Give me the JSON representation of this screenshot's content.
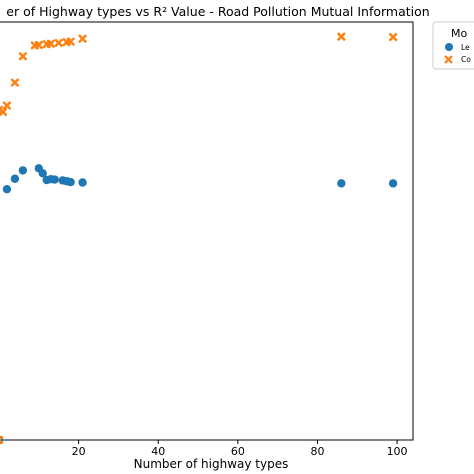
{
  "chart_data": {
    "type": "scatter",
    "title": "er of Highway types vs R² Value - Road Pollution Mutual Information",
    "xlabel": "Number of highway types",
    "ylabel": "",
    "xlim": [
      -1,
      104
    ],
    "ylim": [
      0,
      1
    ],
    "x_ticks": [
      20,
      40,
      60,
      80,
      100
    ],
    "x_tick_labels": [
      "20",
      "40",
      "60",
      "80",
      "100"
    ],
    "grid": false,
    "legend": {
      "title": "Mo",
      "placement": "top-right",
      "entries": [
        "Le",
        "Co"
      ]
    },
    "series": [
      {
        "name": "Le",
        "marker": "circle",
        "color": "#1f77b4",
        "points": [
          {
            "x": 0,
            "y": 0
          },
          {
            "x": 2,
            "y": 0.6
          },
          {
            "x": 4,
            "y": 0.625
          },
          {
            "x": 6,
            "y": 0.645
          },
          {
            "x": 10,
            "y": 0.65
          },
          {
            "x": 11,
            "y": 0.638
          },
          {
            "x": 12,
            "y": 0.622
          },
          {
            "x": 13,
            "y": 0.624
          },
          {
            "x": 14,
            "y": 0.623
          },
          {
            "x": 16,
            "y": 0.621
          },
          {
            "x": 17,
            "y": 0.619
          },
          {
            "x": 18,
            "y": 0.617
          },
          {
            "x": 21,
            "y": 0.616
          },
          {
            "x": 86,
            "y": 0.614
          },
          {
            "x": 99,
            "y": 0.614
          }
        ]
      },
      {
        "name": "Co",
        "marker": "x",
        "color": "#ff7f0e",
        "points": [
          {
            "x": 0,
            "y": 0
          },
          {
            "x": 0,
            "y": 0.79
          },
          {
            "x": 1,
            "y": 0.785
          },
          {
            "x": 2,
            "y": 0.8
          },
          {
            "x": 4,
            "y": 0.855
          },
          {
            "x": 6,
            "y": 0.918
          },
          {
            "x": 9,
            "y": 0.944
          },
          {
            "x": 10,
            "y": 0.945
          },
          {
            "x": 12,
            "y": 0.947
          },
          {
            "x": 13,
            "y": 0.948
          },
          {
            "x": 15,
            "y": 0.95
          },
          {
            "x": 17,
            "y": 0.952
          },
          {
            "x": 18,
            "y": 0.953
          },
          {
            "x": 21,
            "y": 0.96
          },
          {
            "x": 86,
            "y": 0.965
          },
          {
            "x": 99,
            "y": 0.964
          }
        ]
      }
    ]
  }
}
